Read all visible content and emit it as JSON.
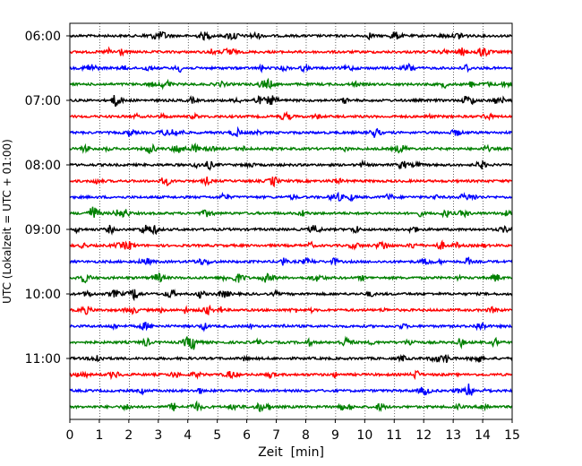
{
  "chart_data": {
    "type": "line",
    "title": "",
    "xlabel": "Zeit  [min]",
    "ylabel": "UTC (Lokalzeit = UTC + 01:00)",
    "xlim": [
      0,
      15
    ],
    "x_ticks": [
      "0",
      "1",
      "2",
      "3",
      "4",
      "5",
      "6",
      "7",
      "8",
      "9",
      "10",
      "11",
      "12",
      "13",
      "14",
      "15"
    ],
    "y_ticks": [
      "06:00",
      "07:00",
      "08:00",
      "09:00",
      "10:00",
      "11:00"
    ],
    "grid": "vertical dotted at each minute",
    "trace_interval_minutes": 15,
    "trace_start": "06:00",
    "trace_colors": [
      "#000000",
      "#ff0000",
      "#0000ff",
      "#008000"
    ],
    "series": [
      {
        "start": "06:00",
        "color": "#000000"
      },
      {
        "start": "06:15",
        "color": "#ff0000"
      },
      {
        "start": "06:30",
        "color": "#0000ff"
      },
      {
        "start": "06:45",
        "color": "#008000"
      },
      {
        "start": "07:00",
        "color": "#000000"
      },
      {
        "start": "07:15",
        "color": "#ff0000"
      },
      {
        "start": "07:30",
        "color": "#0000ff"
      },
      {
        "start": "07:45",
        "color": "#008000"
      },
      {
        "start": "08:00",
        "color": "#000000"
      },
      {
        "start": "08:15",
        "color": "#ff0000"
      },
      {
        "start": "08:30",
        "color": "#0000ff"
      },
      {
        "start": "08:45",
        "color": "#008000"
      },
      {
        "start": "09:00",
        "color": "#000000"
      },
      {
        "start": "09:15",
        "color": "#ff0000"
      },
      {
        "start": "09:30",
        "color": "#0000ff"
      },
      {
        "start": "09:45",
        "color": "#008000"
      },
      {
        "start": "10:00",
        "color": "#000000"
      },
      {
        "start": "10:15",
        "color": "#ff0000"
      },
      {
        "start": "10:30",
        "color": "#0000ff"
      },
      {
        "start": "10:45",
        "color": "#008000"
      },
      {
        "start": "11:00",
        "color": "#000000"
      },
      {
        "start": "11:15",
        "color": "#ff0000"
      },
      {
        "start": "11:30",
        "color": "#0000ff"
      },
      {
        "start": "11:45",
        "color": "#008000"
      }
    ]
  }
}
